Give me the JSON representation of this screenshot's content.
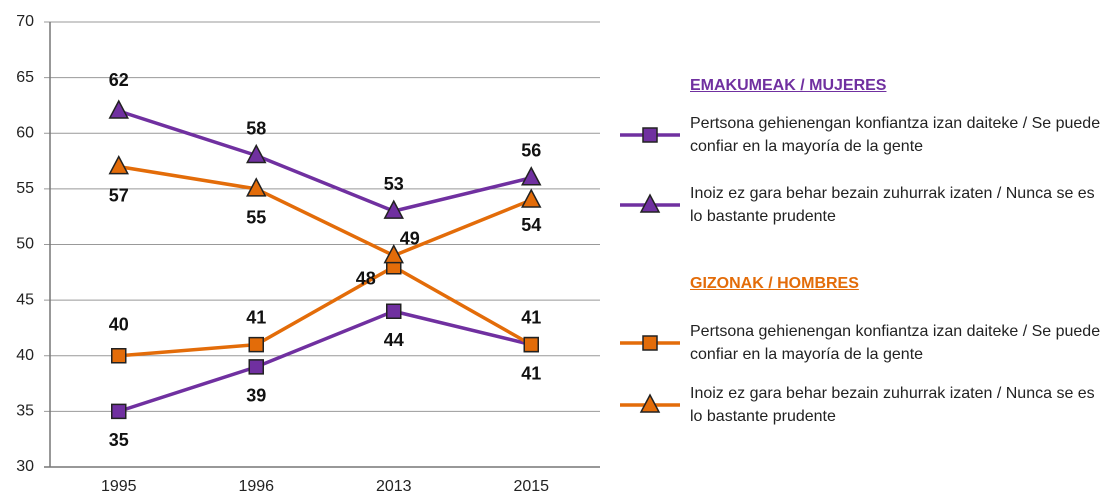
{
  "chart_data": {
    "type": "line",
    "categories": [
      "1995",
      "1996",
      "2013",
      "2015"
    ],
    "ylim": [
      30,
      70
    ],
    "yticks": [
      30,
      35,
      40,
      45,
      50,
      55,
      60,
      65,
      70
    ],
    "grid": true,
    "legend_groups": [
      "EMAKUMEAK  / MUJERES",
      "GIZONAK / HOMBRES"
    ],
    "series": [
      {
        "name": "Pertsona gehienengan konfiantza izan daiteke / Se puede confiar en la mayoría de la gente",
        "color": "#7030a0",
        "marker": "square",
        "values": [
          35,
          39,
          44,
          41
        ]
      },
      {
        "name": "Inoiz ez gara behar bezain zuhurrak izaten / Nunca se es lo bastante prudente",
        "color": "#7030a0",
        "marker": "triangle",
        "values": [
          62,
          58,
          53,
          56
        ]
      },
      {
        "name": "Pertsona gehienengan konfiantza izan daiteke / Se puede confiar en la mayoría de la gente",
        "color": "#e36c09",
        "marker": "square",
        "values": [
          40,
          41,
          48,
          41
        ]
      },
      {
        "name": "Inoiz ez gara behar bezain zuhurrak izaten / Nunca se es lo bastante prudente",
        "color": "#e36c09",
        "marker": "triangle",
        "values": [
          57,
          55,
          49,
          54
        ]
      }
    ]
  }
}
